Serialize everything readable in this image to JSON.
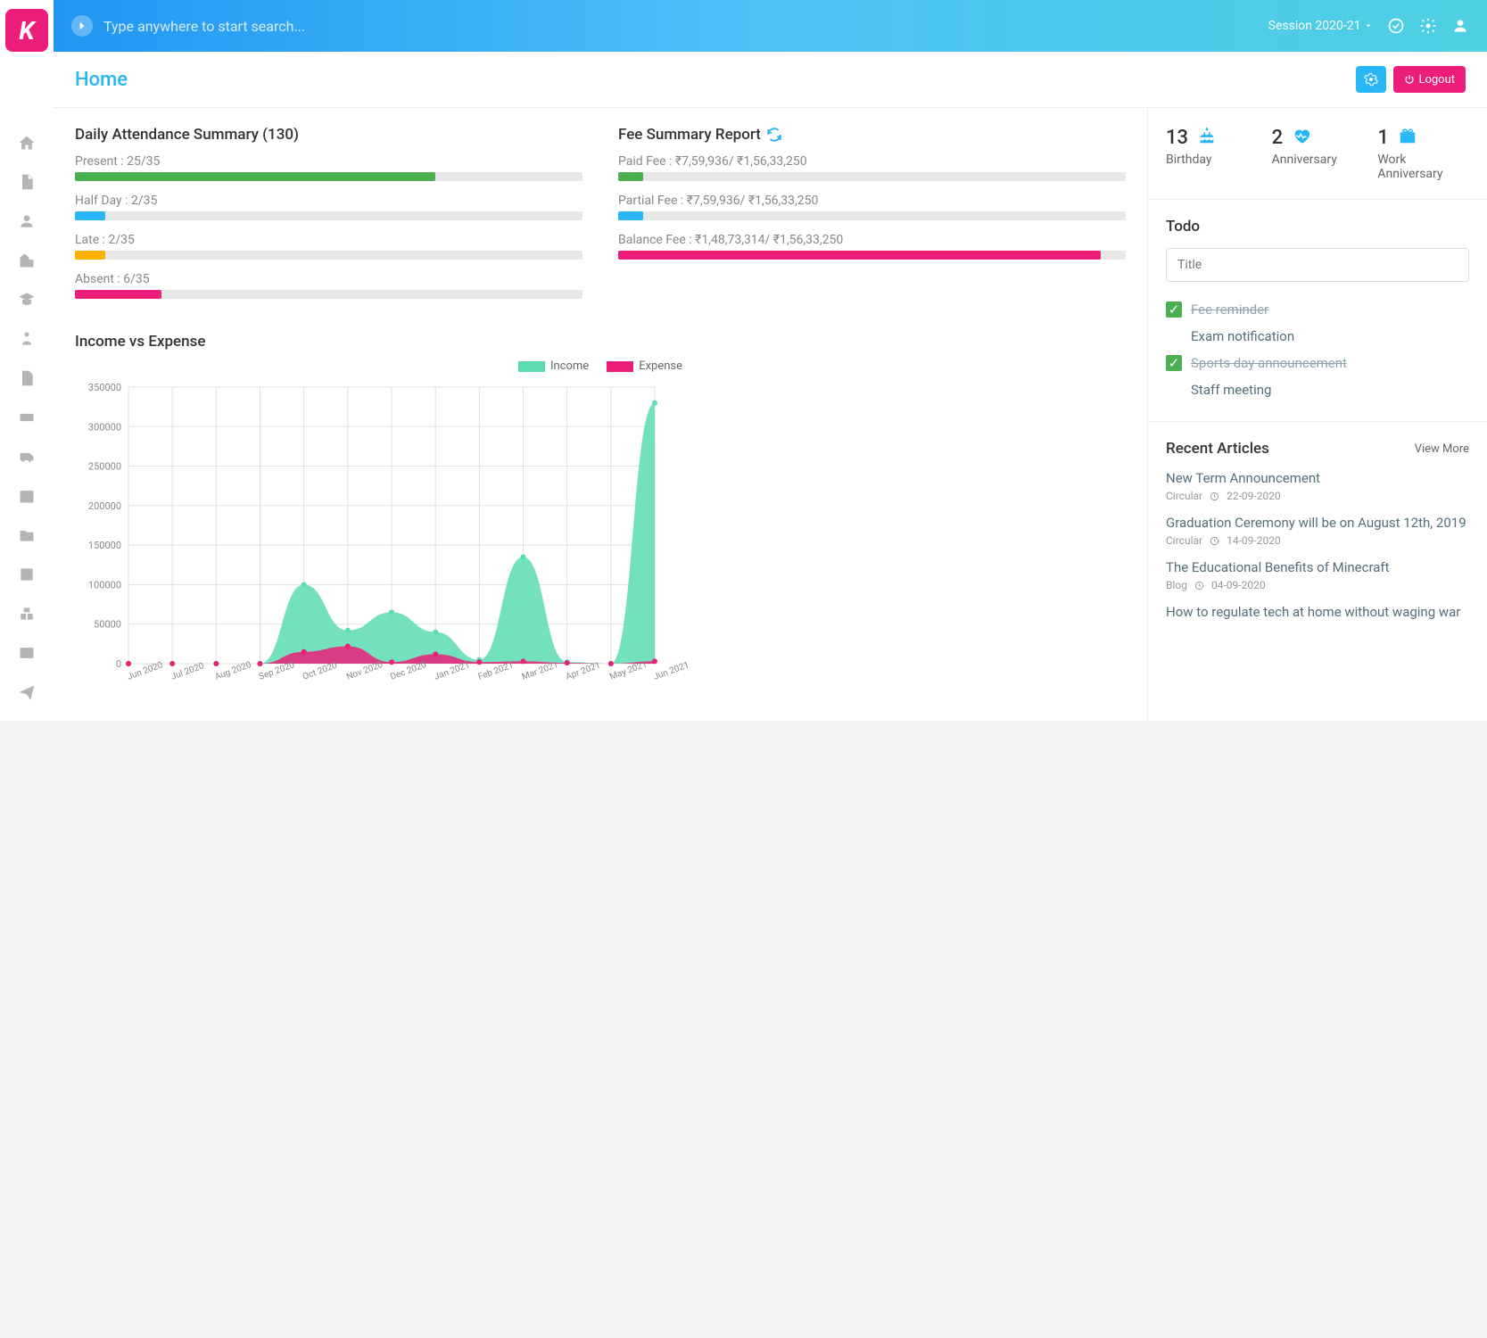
{
  "colors": {
    "brand": "#ec1e79",
    "accent": "#29b6f6",
    "green": "#4caf50",
    "orange": "#ffb300",
    "income": "#5cdcb3",
    "expense": "#ec1e79",
    "grid": "#e0e0e0"
  },
  "topbar": {
    "search_placeholder": "Type anywhere to start search...",
    "session": "Session 2020-21"
  },
  "header": {
    "title": "Home",
    "logout": "Logout"
  },
  "attendance": {
    "title": "Daily Attendance Summary (130)",
    "rows": [
      {
        "label": "Present : 25/35",
        "pct": 71,
        "color": "#4caf50"
      },
      {
        "label": "Half Day : 2/35",
        "pct": 6,
        "color": "#29b6f6"
      },
      {
        "label": "Late : 2/35",
        "pct": 6,
        "color": "#ffb300"
      },
      {
        "label": "Absent : 6/35",
        "pct": 17,
        "color": "#ec1e79"
      }
    ]
  },
  "fee": {
    "title": "Fee Summary Report",
    "rows": [
      {
        "label": "Paid Fee : ₹7,59,936/ ₹1,56,33,250",
        "pct": 5,
        "color": "#4caf50"
      },
      {
        "label": "Partial Fee : ₹7,59,936/ ₹1,56,33,250",
        "pct": 5,
        "color": "#29b6f6"
      },
      {
        "label": "Balance Fee : ₹1,48,73,314/ ₹1,56,33,250",
        "pct": 95,
        "color": "#ec1e79"
      }
    ]
  },
  "chart": {
    "title": "Income vs Expense",
    "legend": {
      "income": "Income",
      "expense": "Expense"
    },
    "ylim": [
      0,
      350000
    ],
    "ytick_step": 50000,
    "categories": [
      "Jun 2020",
      "Jul 2020",
      "Aug 2020",
      "Sep 2020",
      "Oct 2020",
      "Nov 2020",
      "Dec 2020",
      "Jan 2021",
      "Feb 2021",
      "Mar 2021",
      "Apr 2021",
      "May 2021",
      "Jun 2021"
    ],
    "income": [
      0,
      0,
      0,
      0,
      100000,
      42000,
      65000,
      40000,
      5000,
      135000,
      2000,
      0,
      330000
    ],
    "expense": [
      0,
      0,
      0,
      0,
      15000,
      22000,
      2000,
      12000,
      2000,
      3000,
      1000,
      0,
      3000
    ],
    "income_color": "#5cdcb3",
    "expense_color": "#ec1e79"
  },
  "stats": [
    {
      "num": "13",
      "label": "Birthday",
      "icon": "cake"
    },
    {
      "num": "2",
      "label": "Anniversary",
      "icon": "heart"
    },
    {
      "num": "1",
      "label": "Work Anniversary",
      "icon": "gift"
    }
  ],
  "todo": {
    "title": "Todo",
    "input_placeholder": "Title",
    "items": [
      {
        "text": "Fee reminder",
        "done": true
      },
      {
        "text": "Exam notification",
        "done": false
      },
      {
        "text": "Sports day announcement",
        "done": true
      },
      {
        "text": "Staff meeting",
        "done": false
      }
    ]
  },
  "articles": {
    "title": "Recent Articles",
    "view_more": "View More",
    "items": [
      {
        "title": "New Term Announcement",
        "cat": "Circular",
        "date": "22-09-2020"
      },
      {
        "title": "Graduation Ceremony will be on August 12th, 2019",
        "cat": "Circular",
        "date": "14-09-2020"
      },
      {
        "title": "The Educational Benefits of Minecraft",
        "cat": "Blog",
        "date": "04-09-2020"
      },
      {
        "title": "How to regulate tech at home without waging war",
        "cat": "",
        "date": ""
      }
    ]
  }
}
